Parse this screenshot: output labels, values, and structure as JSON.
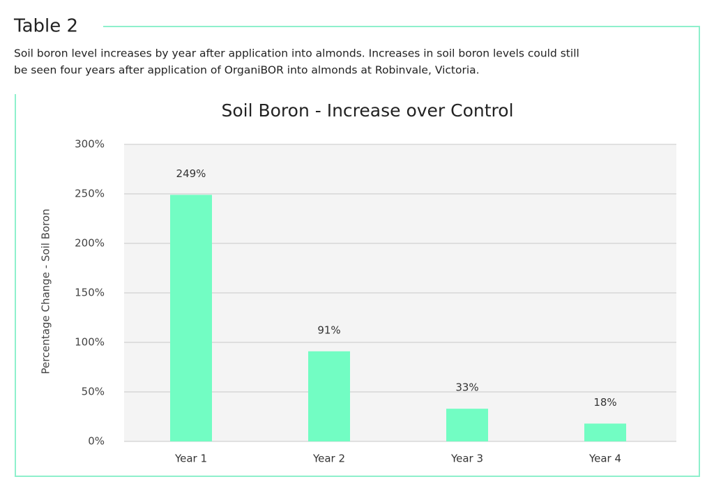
{
  "header": {
    "title": "Table 2",
    "description": [
      "Soil boron level increases by year after application into almonds. Increases in soil boron levels could still",
      "be seen four years after application of OrganiBOR into almonds at Robinvale, Victoria."
    ]
  },
  "chart_data": {
    "type": "bar",
    "title": "Soil Boron - Increase over Control",
    "y_label": "Percentage Change - Soil Boron",
    "categories": [
      "Year 1",
      "Year 2",
      "Year 3",
      "Year 4"
    ],
    "values": [
      249,
      91,
      33,
      18
    ],
    "value_labels": [
      "249%",
      "91%",
      "33%",
      "18%"
    ],
    "color": "#72fdc3",
    "ylim": [
      0,
      300
    ],
    "yticks": [
      {
        "value": 0,
        "label": "0%"
      },
      {
        "value": 50,
        "label": "50%"
      },
      {
        "value": 100,
        "label": "100%"
      },
      {
        "value": 150,
        "label": "150%"
      },
      {
        "value": 200,
        "label": "200%"
      },
      {
        "value": 250,
        "label": "250%"
      },
      {
        "value": 300,
        "label": "300%"
      }
    ],
    "grid": true
  }
}
